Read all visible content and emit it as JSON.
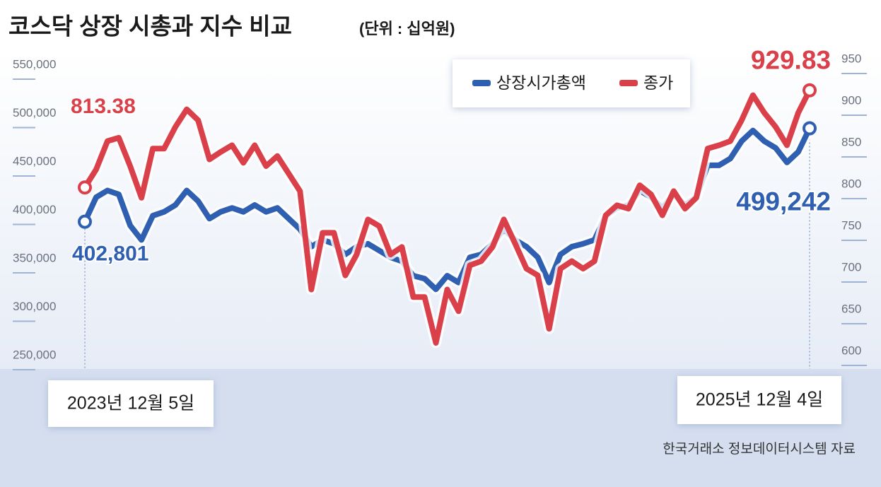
{
  "chart_data": {
    "type": "line",
    "title": "코스닥 상장 시총과 지수 비교",
    "subtitle": "(단위 : 십억원)",
    "source": "한국거래소 정보데이터시스템 자료",
    "categories": [
      "2023년 12월 5일",
      null,
      null,
      null,
      null,
      null,
      null,
      null,
      null,
      null,
      null,
      null,
      null,
      null,
      null,
      null,
      null,
      null,
      null,
      null,
      null,
      null,
      null,
      null,
      null,
      null,
      null,
      null,
      null,
      null,
      null,
      null,
      null,
      null,
      null,
      null,
      null,
      null,
      null,
      null,
      null,
      null,
      null,
      null,
      null,
      null,
      null,
      null,
      null,
      null,
      null,
      null,
      null,
      null,
      null,
      null,
      null,
      null,
      null,
      null,
      null,
      null,
      null,
      null,
      "2025년 12월 4일"
    ],
    "series": [
      {
        "name": "상장시가총액",
        "color": "#2f5fb0",
        "axis": "y",
        "values": [
          402801,
          428000,
          435000,
          431000,
          399000,
          384000,
          409000,
          413000,
          420000,
          435000,
          424000,
          406000,
          413000,
          417000,
          413000,
          420000,
          413000,
          417000,
          406000,
          395000,
          377000,
          384000,
          380000,
          369000,
          377000,
          380000,
          373000,
          366000,
          362000,
          347000,
          344000,
          333000,
          347000,
          340000,
          366000,
          369000,
          380000,
          395000,
          384000,
          377000,
          366000,
          340000,
          369000,
          377000,
          380000,
          384000,
          409000,
          417000,
          420000,
          435000,
          428000,
          417000,
          431000,
          420000,
          428000,
          461000,
          461000,
          468000,
          486000,
          497000,
          486000,
          479000,
          464000,
          475000,
          499242
        ],
        "value_labels": [
          "402,801",
          null,
          null,
          null,
          null,
          null,
          null,
          null,
          null,
          null,
          null,
          null,
          null,
          null,
          null,
          null,
          null,
          null,
          null,
          null,
          null,
          null,
          null,
          null,
          null,
          null,
          null,
          null,
          null,
          null,
          null,
          null,
          null,
          null,
          null,
          null,
          null,
          null,
          null,
          null,
          null,
          null,
          null,
          null,
          null,
          null,
          null,
          null,
          null,
          null,
          null,
          null,
          null,
          null,
          null,
          null,
          null,
          null,
          null,
          null,
          null,
          null,
          null,
          null,
          "499,242"
        ]
      },
      {
        "name": "종가",
        "color": "#d9404a",
        "axis": "y2",
        "values": [
          813.38,
          835,
          869,
          873,
          839,
          801,
          860,
          860,
          886,
          907,
          894,
          847,
          856,
          864,
          843,
          864,
          839,
          851,
          830,
          809,
          691,
          759,
          759,
          708,
          733,
          775,
          767,
          733,
          742,
          682,
          682,
          627,
          691,
          665,
          720,
          725,
          742,
          775,
          746,
          716,
          708,
          644,
          716,
          725,
          716,
          725,
          780,
          792,
          788,
          816,
          805,
          780,
          809,
          788,
          801,
          860,
          864,
          869,
          894,
          924,
          903,
          886,
          864,
          903,
          929.83
        ]
      }
    ],
    "ylim": [
      250000,
      550000
    ],
    "yticks": [
      {
        "value": 250000,
        "label": "250,000"
      },
      {
        "value": 300000,
        "label": "300,000"
      },
      {
        "value": 350000,
        "label": "350,000"
      },
      {
        "value": 400000,
        "label": "400,000"
      },
      {
        "value": 450000,
        "label": "450,000"
      },
      {
        "value": 500000,
        "label": "500,000"
      },
      {
        "value": 550000,
        "label": "550,000"
      }
    ],
    "y2lim": [
      600,
      950
    ],
    "y2ticks": [
      600,
      650,
      700,
      750,
      800,
      850,
      900,
      950
    ],
    "grid": false
  }
}
